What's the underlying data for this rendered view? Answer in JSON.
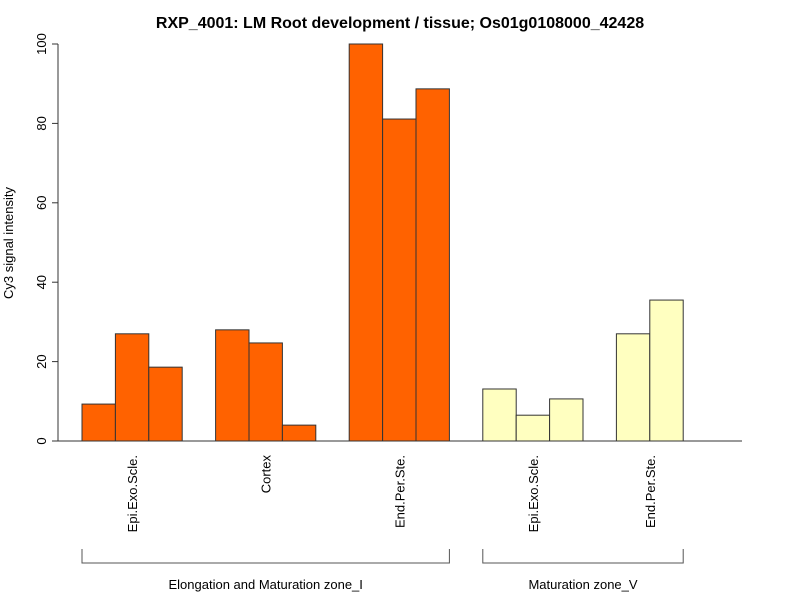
{
  "chart_data": {
    "type": "bar",
    "title": "RXP_4001: LM Root development / tissue; Os01g0108000_42428",
    "xlabel": "",
    "ylabel": "Cy3 signal intensity",
    "ylim": [
      0,
      100
    ],
    "yticks": [
      "0",
      "20",
      "40",
      "60",
      "80",
      "100"
    ],
    "grid": false,
    "colors": {
      "zone_I": "#FF6200",
      "zone_V": "#FFFFC0",
      "stroke": "#333333"
    },
    "groups": [
      {
        "label": "Epi.Exo.Scle.",
        "zone": "zone_I",
        "values": [
          9.3,
          27.0,
          18.6
        ]
      },
      {
        "label": "Cortex",
        "zone": "zone_I",
        "values": [
          28.0,
          24.7,
          4.0
        ]
      },
      {
        "label": "End.Per.Ste.",
        "zone": "zone_I",
        "values": [
          100,
          81.1,
          88.7
        ]
      },
      {
        "label": "Epi.Exo.Scle.",
        "zone": "zone_V",
        "values": [
          13.1,
          6.5,
          10.6
        ]
      },
      {
        "label": "End.Per.Ste.",
        "zone": "zone_V",
        "values": [
          27.0,
          35.5
        ]
      }
    ],
    "zones": [
      {
        "key": "zone_I",
        "label": "Elongation and Maturation zone_I"
      },
      {
        "key": "zone_V",
        "label": "Maturation zone_V"
      }
    ]
  }
}
